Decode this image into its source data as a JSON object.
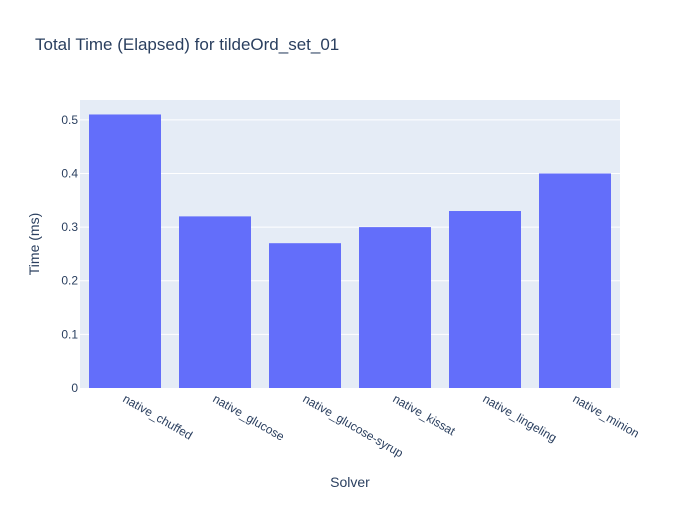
{
  "chart_data": {
    "type": "bar",
    "title": "Total Time (Elapsed) for tildeOrd_set_01",
    "xlabel": "Solver",
    "ylabel": "Time (ms)",
    "categories": [
      "native_chuffed",
      "native_glucose",
      "native_glucose-syrup",
      "native_kissat",
      "native_lingeling",
      "native_minion"
    ],
    "values": [
      0.51,
      0.32,
      0.27,
      0.3,
      0.33,
      0.4
    ],
    "yticks": [
      "0",
      "0.1",
      "0.2",
      "0.3",
      "0.4",
      "0.5"
    ],
    "ylim": [
      0,
      0.537
    ],
    "grid": true,
    "legend": "none",
    "colors": {
      "bar": "#636efa",
      "plot_background": "#e5ecf6",
      "gridline": "#ffffff",
      "text": "#2a3f5f",
      "page_background": "#ffffff"
    }
  }
}
